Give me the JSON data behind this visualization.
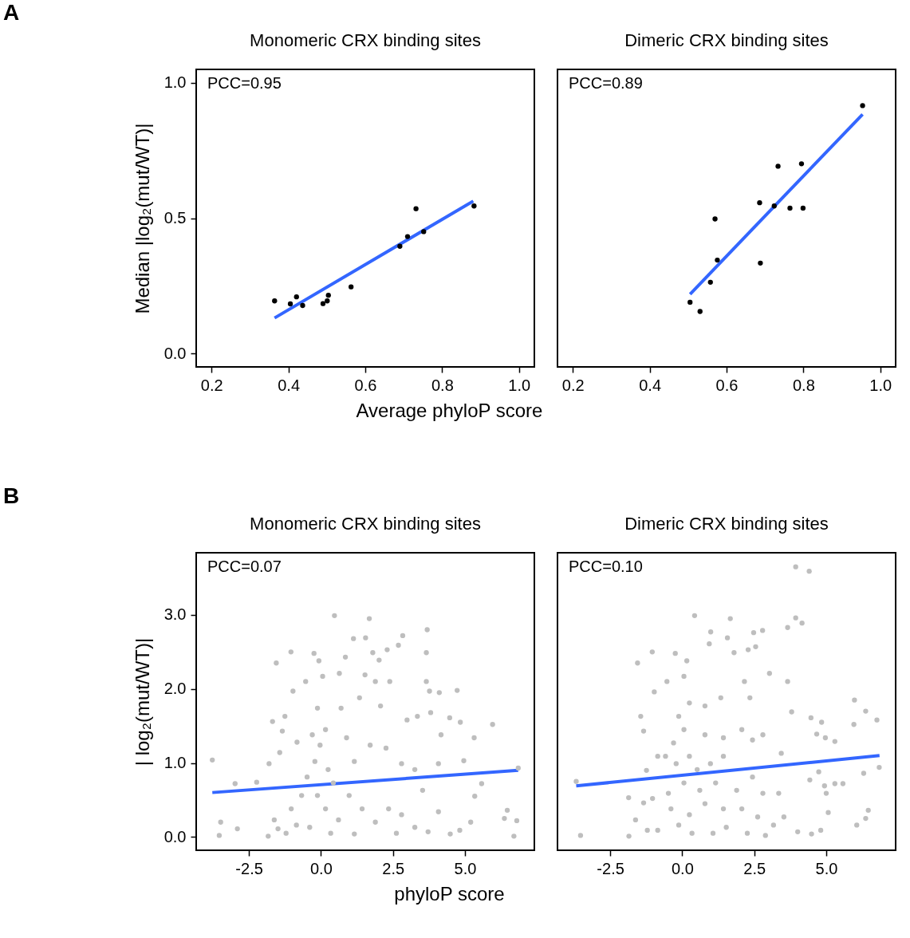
{
  "chart_data": [
    {
      "type": "scatter",
      "title": "Monomeric CRX binding sites",
      "xlabel": "Average phyloP score",
      "ylabel": "Median |log₂(mut/WT)|",
      "annotations": [
        "PCC=0.95",
        "A"
      ],
      "xlim": [
        0.16,
        1.04
      ],
      "ylim": [
        -0.05,
        1.05
      ],
      "xticks": [
        0.2,
        0.4,
        0.6,
        0.8,
        {
          "value": 1,
          "label": "1.0"
        }
      ],
      "yticks": [
        {
          "value": 0,
          "label": "0.0"
        },
        0.5,
        {
          "value": 1,
          "label": "1.0"
        }
      ],
      "grid": false,
      "series": [
        {
          "marker": "circle",
          "color": "#000000",
          "x": [
            0.364,
            0.405,
            0.421,
            0.437,
            0.49,
            0.501,
            0.504,
            0.563,
            0.69,
            0.71,
            0.732,
            0.752,
            0.883
          ],
          "values": [
            0.194,
            0.183,
            0.209,
            0.177,
            0.184,
            0.194,
            0.215,
            0.246,
            0.396,
            0.432,
            0.535,
            0.45,
            0.545
          ]
        },
        {
          "type": "line",
          "color": "#3366ff",
          "x": [
            0.364,
            0.881
          ],
          "values": [
            0.131,
            0.563
          ]
        }
      ]
    },
    {
      "type": "scatter",
      "title": "Dimeric CRX binding sites",
      "annotations": [
        "PCC=0.89"
      ],
      "xlim": [
        0.16,
        1.04
      ],
      "ylim": [
        -0.05,
        1.05
      ],
      "xticks": [
        0.2,
        0.4,
        0.6,
        0.8,
        {
          "value": 1,
          "label": "1.0"
        }
      ],
      "tick_labels": "x",
      "grid": false,
      "series": [
        {
          "marker": "circle",
          "color": "#000000",
          "x": [
            0.505,
            0.531,
            0.558,
            0.576,
            0.57,
            0.686,
            0.688,
            0.734,
            0.724,
            0.765,
            0.795,
            0.799,
            0.954
          ],
          "values": [
            0.189,
            0.155,
            0.263,
            0.345,
            0.497,
            0.557,
            0.334,
            0.692,
            0.545,
            0.537,
            0.701,
            0.537,
            0.916
          ]
        },
        {
          "type": "line",
          "color": "#3366ff",
          "x": [
            0.505,
            0.954
          ],
          "values": [
            0.219,
            0.884
          ]
        }
      ]
    },
    {
      "type": "scatter",
      "title": "Monomeric CRX binding sites",
      "xlabel": "phyloP score",
      "ylabel": "| log₂(mut/WT)|",
      "annotations": [
        "PCC=0.07",
        "B"
      ],
      "xlim": [
        -4.33,
        7.41
      ],
      "ylim": [
        -0.18,
        3.84
      ],
      "xticks": [
        -2.5,
        {
          "value": 0,
          "label": "0.0"
        },
        2.5,
        {
          "value": 5,
          "label": "5.0"
        }
      ],
      "yticks": [
        {
          "value": 0,
          "label": "0.0"
        },
        {
          "value": 1,
          "label": "1.0"
        },
        {
          "value": 2,
          "label": "2.0"
        },
        {
          "value": 3,
          "label": "3.0"
        }
      ],
      "grid": false,
      "series": [
        {
          "marker": "circle",
          "color": "#bebebe",
          "x": [
            -3.77,
            -3.53,
            -3.48,
            -2.98,
            -2.9,
            -2.23,
            -1.83,
            -1.8,
            -1.68,
            -1.62,
            -1.55,
            -1.49,
            -1.43,
            -1.34,
            -1.25,
            -1.04,
            -0.97,
            -0.83,
            -0.53,
            -0.24,
            -0.07,
            0.06,
            0.47,
            0.64,
            0.85,
            1.13,
            1.55,
            1.68,
            1.8,
            1.53,
            2.02,
            2.3,
            2.69,
            2.84,
            3.69,
            3.66,
            3.66,
            3.77,
            4.11,
            4.73,
            4.47,
            4.84,
            5.96,
            5.32,
            4.96,
            5.58,
            5.34,
            5.2,
            4.82,
            6.37,
            6.47,
            6.8,
            6.7,
            6.85,
            4.49,
            4.08,
            3.81,
            3.35,
            2.99,
            2.39,
            1.89,
            0.16,
            -0.03,
            -0.21,
            0.25,
            0.43,
            -0.12,
            0.16,
            0.61,
            -0.39,
            -0.85,
            -1.03,
            -0.67,
            -0.48,
            0.98,
            1.43,
            1.89,
            2.35,
            2.8,
            3.26,
            1.16,
            1.71,
            2.26,
            2.8,
            3.26,
            0.7,
            1.34,
            2.07,
            -0.12,
            0.34,
            1.16,
            3.72,
            2.62,
            -1.21,
            -0.3,
            0.89,
            4.17,
            4.08,
            3.53
          ],
          "values": [
            1.04,
            0.02,
            0.2,
            0.72,
            0.11,
            0.74,
            0.01,
            0.99,
            1.56,
            0.23,
            2.35,
            0.11,
            1.14,
            1.43,
            1.63,
            2.5,
            1.97,
            1.28,
            2.1,
            2.48,
            2.38,
            2.17,
            2.99,
            2.21,
            2.43,
            2.68,
            2.69,
            2.95,
            2.49,
            2.19,
            2.39,
            2.53,
            2.59,
            2.72,
            2.8,
            2.49,
            2.1,
            1.97,
            1.95,
            1.98,
            1.61,
            1.55,
            1.52,
            1.34,
            1.03,
            0.72,
            0.55,
            0.2,
            0.09,
            0.25,
            0.36,
            0.22,
            0.01,
            0.93,
            0.04,
            0.34,
            1.68,
            1.63,
            1.58,
            2.1,
            2.1,
            1.45,
            1.24,
            1.02,
            0.91,
            0.73,
            0.56,
            0.38,
            0.23,
            0.13,
            0.16,
            0.38,
            0.56,
            0.81,
            0.56,
            0.38,
            0.2,
            0.38,
            0.3,
            0.13,
            1.02,
            1.24,
            1.2,
            0.99,
            0.91,
            1.74,
            1.88,
            1.77,
            1.74,
            0.05,
            0.04,
            0.07,
            0.05,
            0.05,
            1.38,
            1.34,
            1.38,
            0.99,
            0.63
          ]
        },
        {
          "type": "line",
          "color": "#3366ff",
          "x": [
            -3.77,
            6.85
          ],
          "values": [
            0.6,
            0.9
          ]
        }
      ]
    },
    {
      "type": "scatter",
      "title": "Dimeric CRX binding sites",
      "annotations": [
        "PCC=0.10"
      ],
      "xlim": [
        -4.33,
        7.41
      ],
      "ylim": [
        -0.18,
        3.84
      ],
      "xticks": [
        -2.5,
        {
          "value": 0,
          "label": "0.0"
        },
        2.5,
        {
          "value": 5,
          "label": "5.0"
        }
      ],
      "tick_labels": "x",
      "grid": false,
      "series": [
        {
          "marker": "circle",
          "color": "#bebebe",
          "x": [
            -3.68,
            -3.53,
            -1.85,
            -1.86,
            -1.62,
            -1.55,
            -1.44,
            -1.34,
            -1.24,
            -1.34,
            -1.04,
            -0.97,
            -0.53,
            -0.24,
            0.16,
            0.06,
            0.43,
            0.99,
            0.94,
            1.67,
            1.57,
            1.8,
            2.29,
            2.48,
            2.55,
            2.79,
            3.03,
            3.66,
            3.94,
            4.41,
            3.94,
            4.16,
            3.66,
            3.8,
            4.47,
            4.84,
            5.98,
            6.37,
            6.76,
            5.96,
            5.3,
            4.97,
            4.67,
            6.84,
            6.3,
            5.58,
            5.3,
            4.94,
            5.0,
            5.07,
            6.37,
            6.46,
            6.06,
            4.81,
            4.49,
            4.01,
            4.43,
            4.74,
            0.25,
            -0.21,
            0.52,
            0.98,
            1.43,
            2.07,
            2.44,
            2.8,
            -0.3,
            0.06,
            0.79,
            1.43,
            0.25,
            -0.12,
            -0.58,
            -0.85,
            -0.48,
            0.06,
            0.61,
            1.16,
            1.89,
            2.44,
            2.8,
            -0.39,
            0.25,
            0.79,
            1.43,
            2.07,
            2.62,
            -0.12,
            0.34,
            1.07,
            1.53,
            2.26,
            2.89,
            -0.85,
            -1.21,
            -1.03,
            3.17,
            3.53,
            3.35,
            3.44,
            2.35,
            1.34,
            0.79,
            2.16
          ],
          "values": [
            0.75,
            0.02,
            0.01,
            0.53,
            0.23,
            2.35,
            1.63,
            1.43,
            0.9,
            0.46,
            2.5,
            1.96,
            2.1,
            2.48,
            2.38,
            2.17,
            2.99,
            2.77,
            2.61,
            2.95,
            2.69,
            2.49,
            2.53,
            2.76,
            2.57,
            2.79,
            2.21,
            2.83,
            3.65,
            3.59,
            2.96,
            2.89,
            2.1,
            1.69,
            1.61,
            1.55,
            1.85,
            1.7,
            1.58,
            1.52,
            1.29,
            1.34,
            1.39,
            0.94,
            0.86,
            0.72,
            0.72,
            0.69,
            0.59,
            0.33,
            0.25,
            0.36,
            0.16,
            0.09,
            0.04,
            0.07,
            0.77,
            0.88,
            1.09,
            0.99,
            0.91,
            0.99,
            1.09,
            1.45,
            1.31,
            1.38,
            1.27,
            1.45,
            1.38,
            1.34,
            1.81,
            1.63,
            1.09,
            1.09,
            0.59,
            0.73,
            0.63,
            0.73,
            0.63,
            0.81,
            0.59,
            0.38,
            0.3,
            0.45,
            0.38,
            0.38,
            0.27,
            0.16,
            0.05,
            0.05,
            0.13,
            0.05,
            0.02,
            0.09,
            0.09,
            0.52,
            0.16,
            0.27,
            0.59,
            1.13,
            1.88,
            1.88,
            1.77,
            2.1
          ]
        },
        {
          "type": "line",
          "color": "#3366ff",
          "x": [
            -3.68,
            6.85
          ],
          "values": [
            0.69,
            1.1
          ]
        }
      ]
    }
  ]
}
